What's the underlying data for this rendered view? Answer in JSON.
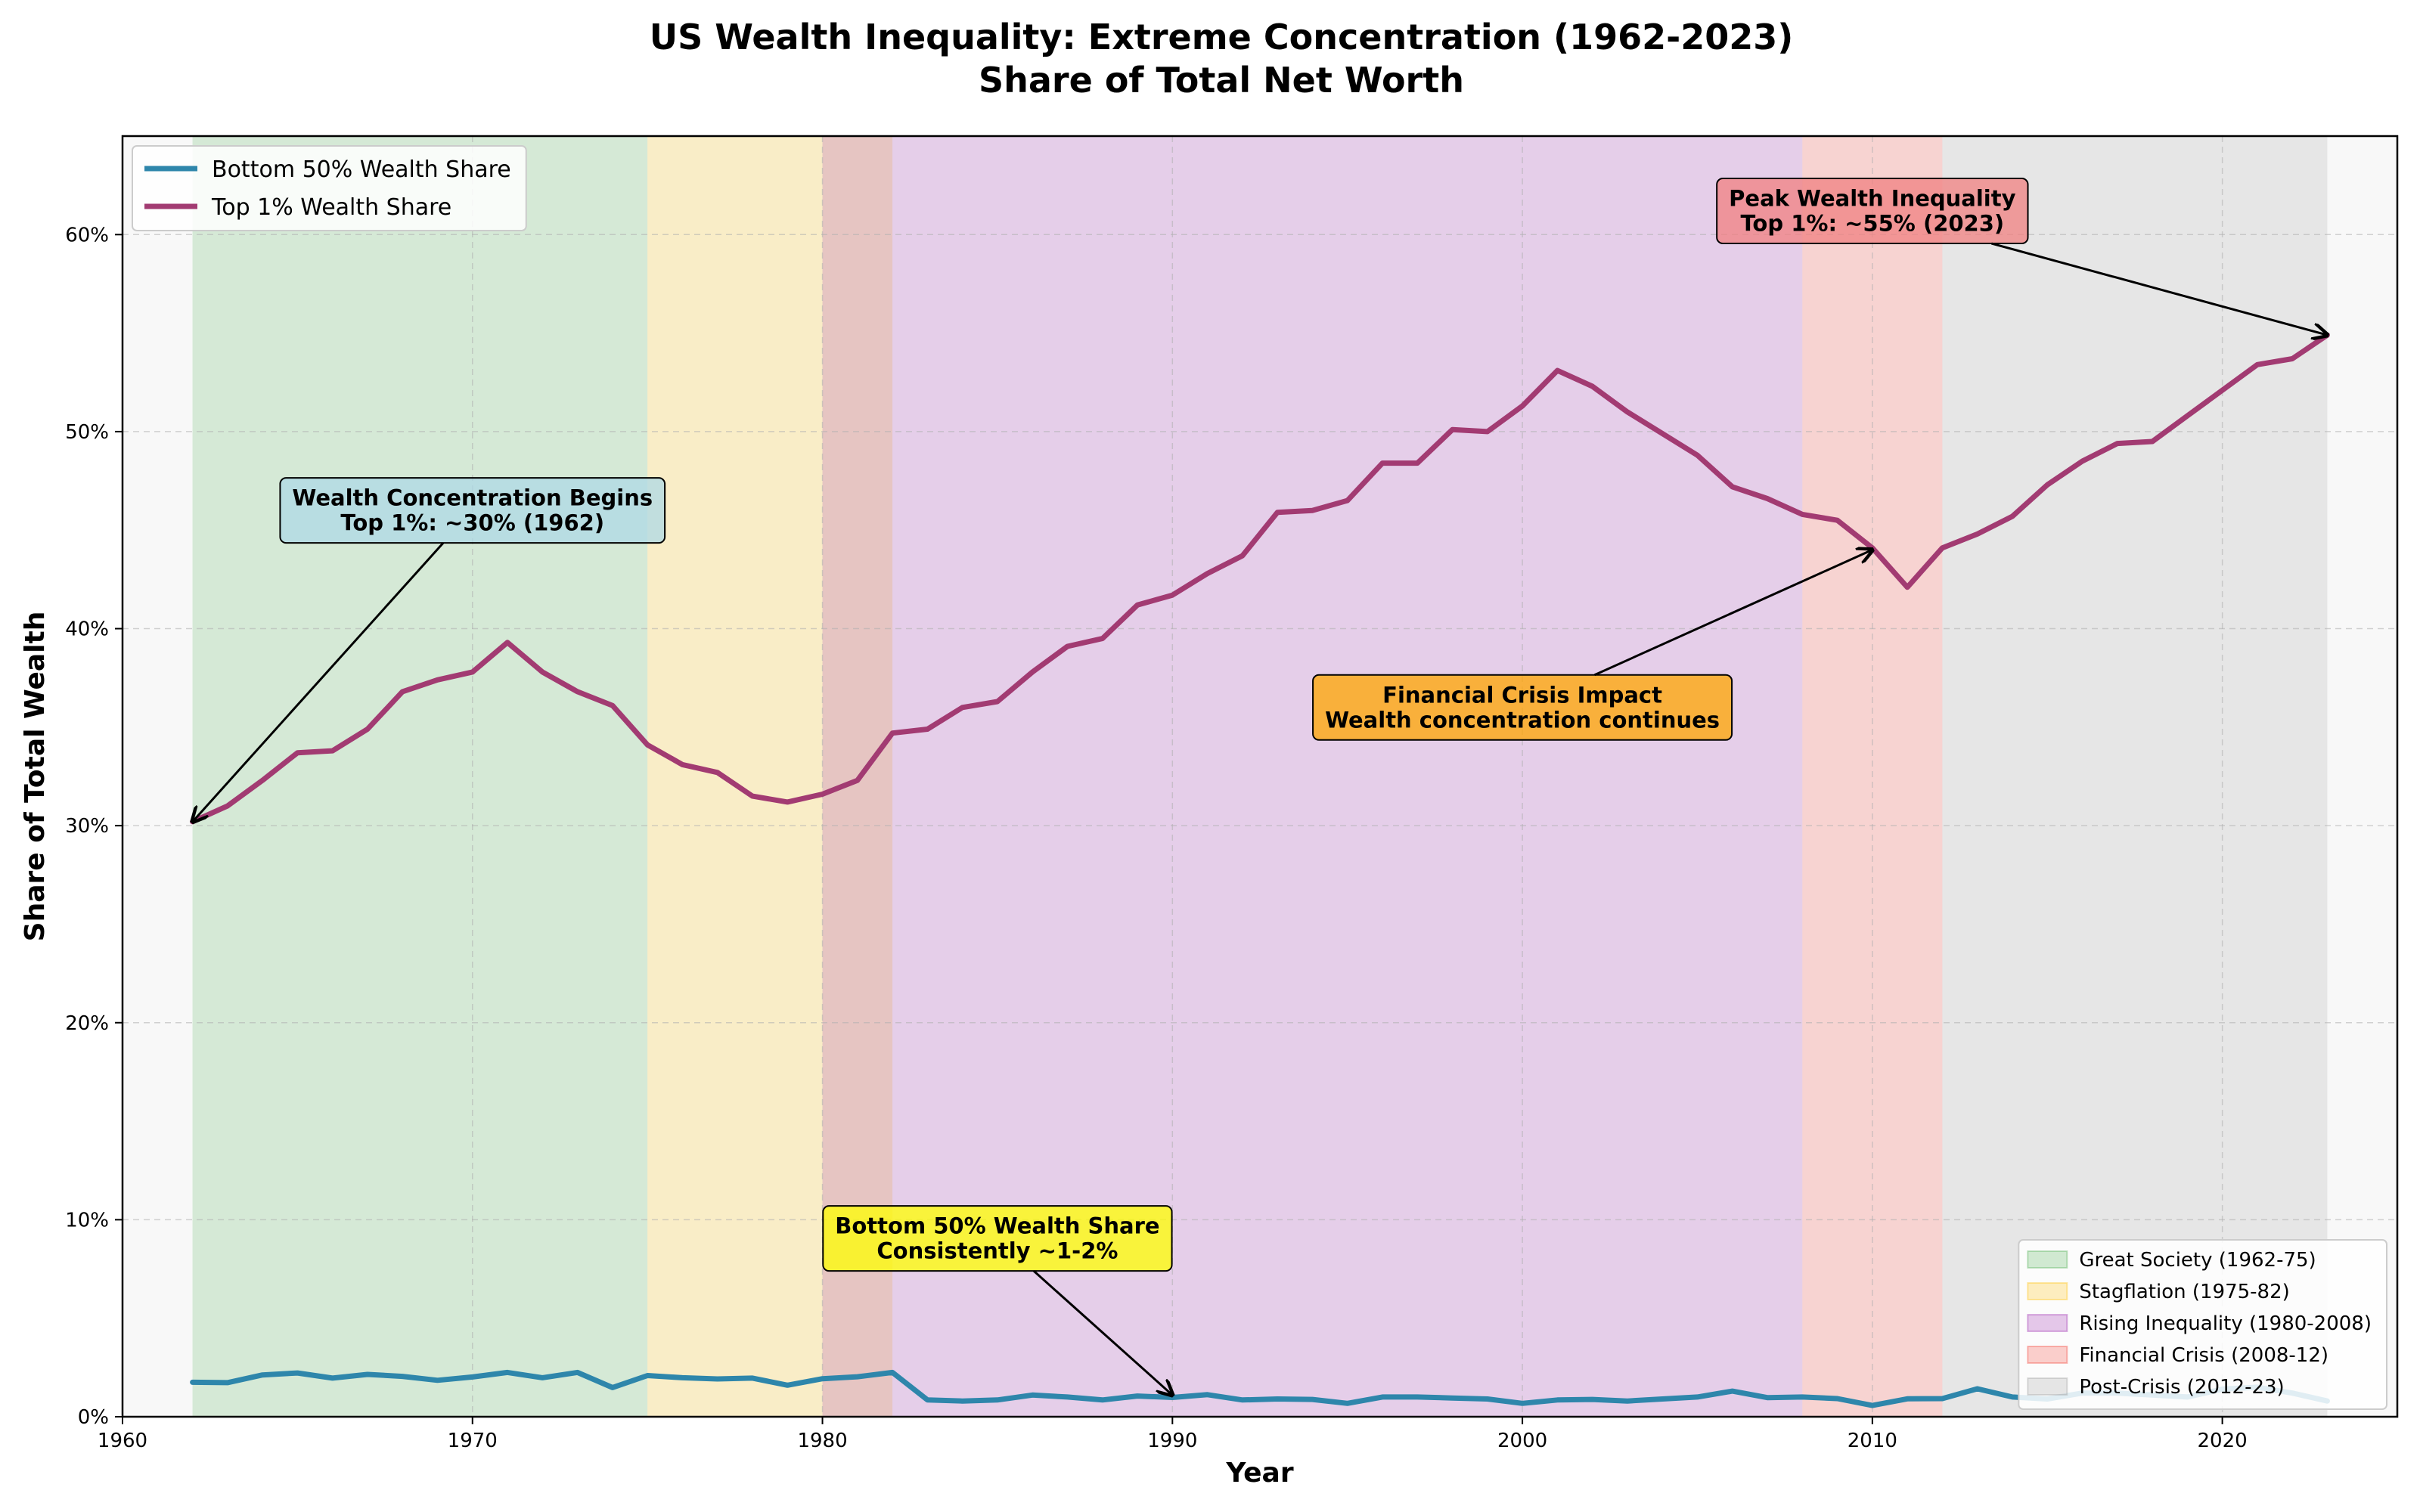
{
  "chart_data": {
    "type": "line",
    "title": [
      "US Wealth Inequality: Extreme Concentration (1962-2023)",
      "Share of Total Net Worth"
    ],
    "xlabel": "Year",
    "ylabel": "Share of Total Wealth",
    "xlim": [
      1960,
      2025
    ],
    "ylim": [
      0,
      0.65
    ],
    "xticks": [
      1960,
      1970,
      1980,
      1990,
      2000,
      2010,
      2020
    ],
    "xtick_labels": [
      "1960",
      "1970",
      "1980",
      "1990",
      "2000",
      "2010",
      "2020"
    ],
    "yticks": [
      0,
      0.1,
      0.2,
      0.3,
      0.4,
      0.5,
      0.6
    ],
    "ytick_labels": [
      "0%",
      "10%",
      "20%",
      "30%",
      "40%",
      "50%",
      "60%"
    ],
    "grid": true,
    "series": [
      {
        "name": "Bottom 50% Wealth Share",
        "color": "#2E86AB",
        "x": [
          1962,
          1963,
          1964,
          1965,
          1966,
          1967,
          1968,
          1969,
          1970,
          1971,
          1972,
          1973,
          1974,
          1975,
          1976,
          1977,
          1978,
          1979,
          1980,
          1981,
          1982,
          1983,
          1984,
          1985,
          1986,
          1987,
          1988,
          1989,
          1990,
          1991,
          1992,
          1993,
          1994,
          1995,
          1996,
          1997,
          1998,
          1999,
          2000,
          2001,
          2002,
          2003,
          2004,
          2005,
          2006,
          2007,
          2008,
          2009,
          2010,
          2011,
          2012,
          2013,
          2014,
          2015,
          2016,
          2017,
          2018,
          2019,
          2020,
          2021,
          2022,
          2023
        ],
        "values": [
          0.0175,
          0.0173,
          0.0212,
          0.0222,
          0.0196,
          0.0215,
          0.0205,
          0.0185,
          0.0202,
          0.0225,
          0.0198,
          0.0225,
          0.0148,
          0.0209,
          0.0198,
          0.0192,
          0.0196,
          0.016,
          0.0193,
          0.0203,
          0.0225,
          0.0085,
          0.008,
          0.0085,
          0.011,
          0.01,
          0.0085,
          0.0105,
          0.0098,
          0.0112,
          0.0085,
          0.009,
          0.0088,
          0.0068,
          0.01,
          0.01,
          0.0095,
          0.009,
          0.0068,
          0.0085,
          0.0088,
          0.008,
          0.009,
          0.01,
          0.013,
          0.0097,
          0.01,
          0.0092,
          0.0057,
          0.0091,
          0.0092,
          0.0142,
          0.01,
          0.009,
          0.012,
          0.012,
          0.011,
          0.01,
          0.014,
          0.015,
          0.012,
          0.008
        ]
      },
      {
        "name": "Top 1% Wealth Share",
        "color": "#A23B72",
        "x": [
          1962,
          1963,
          1964,
          1965,
          1966,
          1967,
          1968,
          1969,
          1970,
          1971,
          1972,
          1973,
          1974,
          1975,
          1976,
          1977,
          1978,
          1979,
          1980,
          1981,
          1982,
          1983,
          1984,
          1985,
          1986,
          1987,
          1988,
          1989,
          1990,
          1991,
          1992,
          1993,
          1994,
          1995,
          1996,
          1997,
          1998,
          1999,
          2000,
          2001,
          2002,
          2003,
          2004,
          2005,
          2006,
          2007,
          2008,
          2009,
          2010,
          2011,
          2012,
          2013,
          2014,
          2015,
          2016,
          2017,
          2018,
          2019,
          2020,
          2021,
          2022,
          2023
        ],
        "values": [
          0.302,
          0.31,
          0.323,
          0.337,
          0.338,
          0.349,
          0.368,
          0.374,
          0.378,
          0.393,
          0.378,
          0.368,
          0.361,
          0.341,
          0.331,
          0.327,
          0.315,
          0.312,
          0.316,
          0.323,
          0.347,
          0.349,
          0.36,
          0.363,
          0.378,
          0.391,
          0.395,
          0.412,
          0.417,
          0.428,
          0.437,
          0.459,
          0.46,
          0.465,
          0.484,
          0.484,
          0.501,
          0.5,
          0.513,
          0.531,
          0.523,
          0.51,
          0.499,
          0.488,
          0.472,
          0.466,
          0.458,
          0.455,
          0.441,
          0.421,
          0.441,
          0.448,
          0.457,
          0.473,
          0.485,
          0.494,
          0.495,
          0.508,
          0.521,
          0.534,
          0.537,
          0.549
        ]
      }
    ],
    "regions": [
      {
        "label": "Great Society (1962-75)",
        "start": 1962,
        "end": 1975,
        "color": "#4CAF50"
      },
      {
        "label": "Stagflation (1975-82)",
        "start": 1975,
        "end": 1982,
        "color": "#FFC107"
      },
      {
        "label": "Rising Inequality (1980-2008)",
        "start": 1980,
        "end": 2008,
        "color": "#9C27B0"
      },
      {
        "label": "Financial Crisis (2008-12)",
        "start": 2008,
        "end": 2012,
        "color": "#F44336"
      },
      {
        "label": "Post-Crisis (2012-23)",
        "start": 2012,
        "end": 2023,
        "color": "#9E9E9E"
      }
    ],
    "annotations": [
      {
        "lines": [
          "Wealth Concentration Begins",
          "Top 1%: ~30% (1962)"
        ],
        "point": [
          1962,
          0.302
        ],
        "text_at": [
          1970,
          0.46
        ],
        "bg": "#ADD8E6"
      },
      {
        "lines": [
          "Peak Wealth Inequality",
          "Top 1%: ~55% (2023)"
        ],
        "point": [
          2023,
          0.549
        ],
        "text_at": [
          2010,
          0.612
        ],
        "bg": "#F08080"
      },
      {
        "lines": [
          "Financial Crisis Impact",
          "Wealth concentration continues"
        ],
        "point": [
          2010,
          0.44
        ],
        "text_at": [
          2000,
          0.36
        ],
        "bg": "#FFA500"
      },
      {
        "lines": [
          "Bottom 50% Wealth Share",
          "Consistently ~1-2%"
        ],
        "point": [
          1990,
          0.011
        ],
        "text_at": [
          1985,
          0.0905
        ],
        "bg": "#FFFF00"
      }
    ],
    "legend_series_position": "upper left",
    "legend_regions_position": "lower right"
  }
}
